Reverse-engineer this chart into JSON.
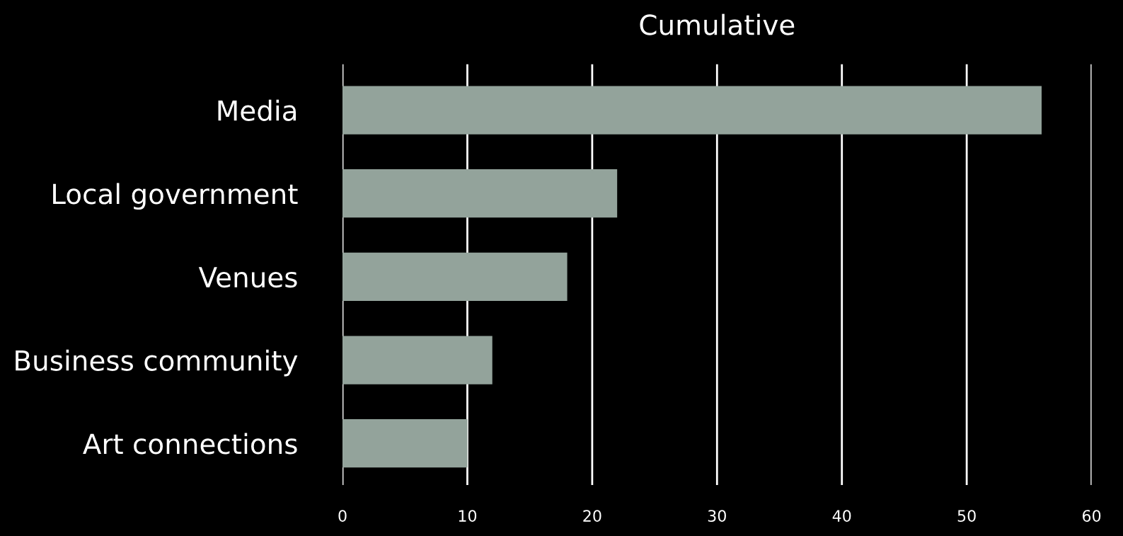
{
  "chart_data": {
    "type": "bar",
    "orientation": "horizontal",
    "title": "Cumulative",
    "categories": [
      "Media",
      "Local government",
      "Venues",
      "Business community",
      "Art connections"
    ],
    "values": [
      56,
      22,
      18,
      12,
      10
    ],
    "color": "#93a39b",
    "xlim": [
      0,
      60
    ],
    "xticks": [
      0,
      10,
      20,
      30,
      40,
      50,
      60
    ],
    "grid": "x",
    "legend": false
  }
}
